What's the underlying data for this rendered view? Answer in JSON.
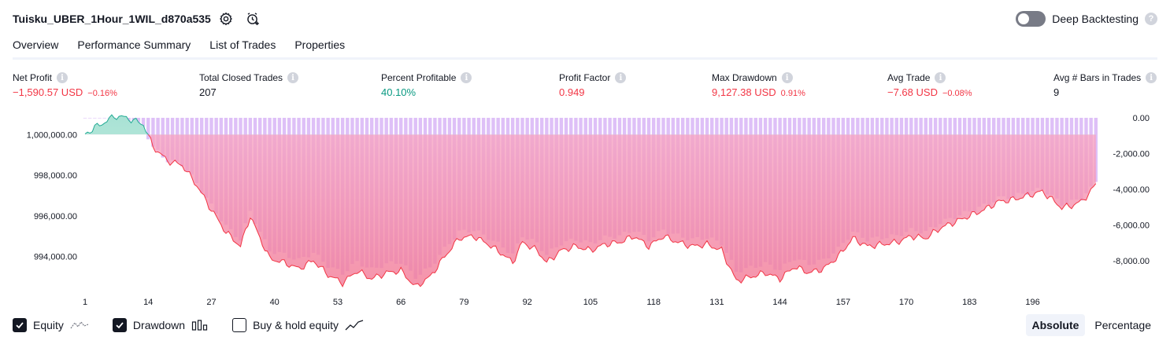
{
  "header": {
    "strategy_name": "Tuisku_UBER_1Hour_1WIL_d870a535",
    "settings_icon": "gear-icon",
    "alert_icon": "alarm-clock-add-icon",
    "deep_backtesting_label": "Deep Backtesting",
    "deep_backtesting_enabled": false
  },
  "tabs": [
    {
      "label": "Overview",
      "active": true
    },
    {
      "label": "Performance Summary",
      "active": false
    },
    {
      "label": "List of Trades",
      "active": false
    },
    {
      "label": "Properties",
      "active": false
    }
  ],
  "metrics": [
    {
      "label": "Net Profit",
      "value": "−1,590.57 USD",
      "sub": "−0.16%",
      "tone": "neg"
    },
    {
      "label": "Total Closed Trades",
      "value": "207",
      "sub": "",
      "tone": "neutral"
    },
    {
      "label": "Percent Profitable",
      "value": "40.10%",
      "sub": "",
      "tone": "pos"
    },
    {
      "label": "Profit Factor",
      "value": "0.949",
      "sub": "",
      "tone": "neg"
    },
    {
      "label": "Max Drawdown",
      "value": "9,127.38 USD",
      "sub": "0.91%",
      "tone": "neg"
    },
    {
      "label": "Avg Trade",
      "value": "−7.68 USD",
      "sub": "−0.08%",
      "tone": "neg"
    },
    {
      "label": "Avg # Bars in Trades",
      "value": "9",
      "sub": "",
      "tone": "neutral"
    }
  ],
  "chart_data": {
    "type": "area",
    "x_ticks": [
      1,
      14,
      27,
      40,
      53,
      66,
      79,
      92,
      105,
      118,
      131,
      144,
      157,
      170,
      183,
      196
    ],
    "left_axis_ticks": [
      "1,000,000.00",
      "998,000.00",
      "996,000.00",
      "994,000.00"
    ],
    "left_axis_values": [
      1000000,
      998000,
      996000,
      994000
    ],
    "right_axis_ticks": [
      "0.00",
      "-2,000.00",
      "-4,000.00",
      "-6,000.00",
      "-8,000.00"
    ],
    "right_axis_values": [
      0,
      -2000,
      -4000,
      -6000,
      -8000
    ],
    "equity_baseline": 1000000,
    "equity_range": [
      992400,
      1000900
    ],
    "drawdown_range": [
      -9000,
      0
    ],
    "equity_trend": [
      [
        1,
        1000000
      ],
      [
        3,
        1000350
      ],
      [
        5,
        1000600
      ],
      [
        7,
        1000900
      ],
      [
        9,
        1000850
      ],
      [
        11,
        1000700
      ],
      [
        13,
        1000500
      ],
      [
        15,
        999400
      ],
      [
        18,
        998700
      ],
      [
        21,
        998500
      ],
      [
        24,
        997500
      ],
      [
        27,
        996300
      ],
      [
        30,
        995200
      ],
      [
        33,
        994500
      ],
      [
        35,
        996000
      ],
      [
        37,
        994900
      ],
      [
        39,
        993900
      ],
      [
        42,
        993700
      ],
      [
        45,
        993400
      ],
      [
        48,
        993800
      ],
      [
        51,
        993100
      ],
      [
        54,
        992700
      ],
      [
        57,
        993300
      ],
      [
        60,
        992900
      ],
      [
        63,
        993200
      ],
      [
        66,
        993300
      ],
      [
        69,
        992500
      ],
      [
        72,
        993000
      ],
      [
        75,
        994000
      ],
      [
        78,
        994900
      ],
      [
        81,
        995000
      ],
      [
        84,
        994600
      ],
      [
        87,
        994100
      ],
      [
        89,
        993700
      ],
      [
        91,
        994700
      ],
      [
        94,
        994300
      ],
      [
        96,
        993700
      ],
      [
        99,
        994300
      ],
      [
        102,
        994500
      ],
      [
        105,
        994300
      ],
      [
        108,
        994600
      ],
      [
        111,
        994700
      ],
      [
        114,
        995000
      ],
      [
        117,
        994500
      ],
      [
        120,
        995000
      ],
      [
        123,
        994700
      ],
      [
        126,
        994500
      ],
      [
        129,
        994600
      ],
      [
        132,
        994300
      ],
      [
        135,
        992800
      ],
      [
        138,
        993000
      ],
      [
        141,
        993200
      ],
      [
        144,
        992900
      ],
      [
        147,
        993500
      ],
      [
        150,
        993200
      ],
      [
        153,
        993400
      ],
      [
        156,
        994000
      ],
      [
        159,
        994900
      ],
      [
        162,
        994500
      ],
      [
        165,
        994600
      ],
      [
        168,
        994700
      ],
      [
        171,
        995000
      ],
      [
        174,
        994900
      ],
      [
        177,
        995400
      ],
      [
        180,
        995700
      ],
      [
        183,
        996000
      ],
      [
        186,
        996300
      ],
      [
        189,
        996700
      ],
      [
        192,
        996800
      ],
      [
        195,
        997000
      ],
      [
        198,
        997200
      ],
      [
        200,
        996800
      ],
      [
        202,
        996400
      ],
      [
        204,
        996500
      ],
      [
        206,
        996700
      ],
      [
        208,
        997200
      ],
      [
        209,
        997600
      ]
    ]
  },
  "legend": [
    {
      "label": "Equity",
      "checked": true,
      "icon": "equity-line-icon"
    },
    {
      "label": "Drawdown",
      "checked": true,
      "icon": "drawdown-bars-icon"
    },
    {
      "label": "Buy & hold equity",
      "checked": false,
      "icon": "buy-hold-line-icon"
    }
  ],
  "mode": {
    "absolute_label": "Absolute",
    "percentage_label": "Percentage",
    "active": "Absolute"
  }
}
